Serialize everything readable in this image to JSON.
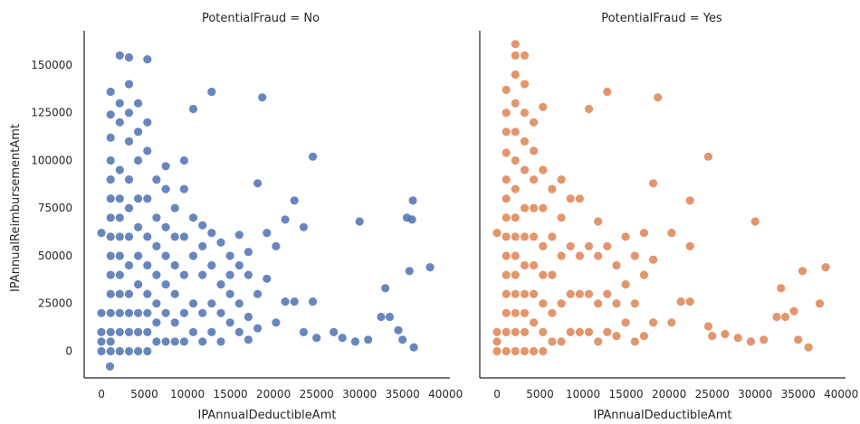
{
  "chart_data": {
    "type": "scatter",
    "facet_variable": "PotentialFraud",
    "xlabel": "IPAnnualDeductibleAmt",
    "ylabel": "IPAnnualReimbursementAmt",
    "xlim": [
      -2000,
      40500
    ],
    "ylim": [
      -14000,
      168000
    ],
    "xticks": [
      0,
      5000,
      10000,
      15000,
      20000,
      25000,
      30000,
      35000,
      40000
    ],
    "yticks": [
      0,
      25000,
      50000,
      75000,
      100000,
      125000,
      150000
    ],
    "grid": false,
    "legend": "none",
    "panels": [
      {
        "title": "PotentialFraud = No",
        "color": "#4c72b0",
        "points": [
          [
            0,
            0
          ],
          [
            0,
            5000
          ],
          [
            0,
            10000
          ],
          [
            0,
            20000
          ],
          [
            0,
            62000
          ],
          [
            1000,
            -8000
          ],
          [
            1068,
            0
          ],
          [
            1068,
            5000
          ],
          [
            1068,
            10000
          ],
          [
            1068,
            20000
          ],
          [
            1068,
            30000
          ],
          [
            1068,
            40000
          ],
          [
            1068,
            50000
          ],
          [
            1068,
            60000
          ],
          [
            1068,
            70000
          ],
          [
            1068,
            80000
          ],
          [
            1068,
            90000
          ],
          [
            1068,
            100000
          ],
          [
            1068,
            112000
          ],
          [
            1068,
            124000
          ],
          [
            1068,
            136000
          ],
          [
            2136,
            0
          ],
          [
            2136,
            10000
          ],
          [
            2136,
            20000
          ],
          [
            2136,
            30000
          ],
          [
            2136,
            40000
          ],
          [
            2136,
            50000
          ],
          [
            2136,
            60000
          ],
          [
            2136,
            70000
          ],
          [
            2136,
            80000
          ],
          [
            2136,
            95000
          ],
          [
            2136,
            120000
          ],
          [
            2136,
            130000
          ],
          [
            2136,
            155000
          ],
          [
            3204,
            0
          ],
          [
            3204,
            10000
          ],
          [
            3204,
            20000
          ],
          [
            3204,
            30000
          ],
          [
            3204,
            45000
          ],
          [
            3204,
            60000
          ],
          [
            3204,
            75000
          ],
          [
            3204,
            90000
          ],
          [
            3204,
            110000
          ],
          [
            3204,
            125000
          ],
          [
            3204,
            140000
          ],
          [
            3204,
            154000
          ],
          [
            4272,
            0
          ],
          [
            4272,
            10000
          ],
          [
            4272,
            20000
          ],
          [
            4272,
            35000
          ],
          [
            4272,
            50000
          ],
          [
            4272,
            65000
          ],
          [
            4272,
            80000
          ],
          [
            4272,
            100000
          ],
          [
            4272,
            115000
          ],
          [
            4272,
            130000
          ],
          [
            5340,
            0
          ],
          [
            5340,
            10000
          ],
          [
            5340,
            20000
          ],
          [
            5340,
            30000
          ],
          [
            5340,
            45000
          ],
          [
            5340,
            60000
          ],
          [
            5340,
            80000
          ],
          [
            5340,
            105000
          ],
          [
            5340,
            120000
          ],
          [
            5340,
            153000
          ],
          [
            6408,
            5000
          ],
          [
            6408,
            15000
          ],
          [
            6408,
            25000
          ],
          [
            6408,
            40000
          ],
          [
            6408,
            55000
          ],
          [
            6408,
            70000
          ],
          [
            6408,
            90000
          ],
          [
            7476,
            5000
          ],
          [
            7476,
            20000
          ],
          [
            7476,
            35000
          ],
          [
            7476,
            50000
          ],
          [
            7476,
            65000
          ],
          [
            7476,
            85000
          ],
          [
            7476,
            97000
          ],
          [
            8544,
            5000
          ],
          [
            8544,
            15000
          ],
          [
            8544,
            30000
          ],
          [
            8544,
            45000
          ],
          [
            8544,
            60000
          ],
          [
            8544,
            75000
          ],
          [
            9612,
            5000
          ],
          [
            9612,
            20000
          ],
          [
            9612,
            40000
          ],
          [
            9612,
            60000
          ],
          [
            9612,
            100000
          ],
          [
            9612,
            85000
          ],
          [
            10680,
            10000
          ],
          [
            10680,
            25000
          ],
          [
            10680,
            50000
          ],
          [
            10680,
            70000
          ],
          [
            10680,
            127000
          ],
          [
            11748,
            5000
          ],
          [
            11748,
            20000
          ],
          [
            11748,
            40000
          ],
          [
            11748,
            55000
          ],
          [
            11748,
            66000
          ],
          [
            12816,
            10000
          ],
          [
            12816,
            25000
          ],
          [
            12816,
            45000
          ],
          [
            12816,
            62000
          ],
          [
            12816,
            136000
          ],
          [
            13884,
            5000
          ],
          [
            13884,
            20000
          ],
          [
            13884,
            35000
          ],
          [
            13884,
            57000
          ],
          [
            14952,
            15000
          ],
          [
            14952,
            30000
          ],
          [
            14952,
            50000
          ],
          [
            14952,
            40000
          ],
          [
            16020,
            10000
          ],
          [
            16020,
            25000
          ],
          [
            16020,
            45000
          ],
          [
            16020,
            61000
          ],
          [
            17088,
            6000
          ],
          [
            17088,
            18000
          ],
          [
            17088,
            40000
          ],
          [
            17088,
            52000
          ],
          [
            18156,
            12000
          ],
          [
            18156,
            30000
          ],
          [
            18156,
            88000
          ],
          [
            18690,
            133000
          ],
          [
            19224,
            62000
          ],
          [
            19224,
            38000
          ],
          [
            20292,
            15000
          ],
          [
            20292,
            55000
          ],
          [
            21360,
            26000
          ],
          [
            21360,
            69000
          ],
          [
            22428,
            26000
          ],
          [
            22428,
            79000
          ],
          [
            23496,
            10000
          ],
          [
            23496,
            65000
          ],
          [
            24564,
            26000
          ],
          [
            24564,
            102000
          ],
          [
            25000,
            7000
          ],
          [
            27000,
            10000
          ],
          [
            28000,
            7000
          ],
          [
            30000,
            68000
          ],
          [
            29500,
            5000
          ],
          [
            31000,
            6000
          ],
          [
            32500,
            18000
          ],
          [
            33000,
            33000
          ],
          [
            33500,
            18000
          ],
          [
            34500,
            11000
          ],
          [
            35000,
            6000
          ],
          [
            35500,
            70000
          ],
          [
            35800,
            42000
          ],
          [
            36200,
            79000
          ],
          [
            36300,
            2000
          ],
          [
            36100,
            69000
          ],
          [
            38200,
            44000
          ]
        ]
      },
      {
        "title": "PotentialFraud = Yes",
        "color": "#dd8452",
        "points": [
          [
            0,
            0
          ],
          [
            0,
            5000
          ],
          [
            0,
            10000
          ],
          [
            0,
            62000
          ],
          [
            1068,
            0
          ],
          [
            1068,
            10000
          ],
          [
            1068,
            20000
          ],
          [
            1068,
            30000
          ],
          [
            1068,
            40000
          ],
          [
            1068,
            50000
          ],
          [
            1068,
            60000
          ],
          [
            1068,
            70000
          ],
          [
            1068,
            80000
          ],
          [
            1068,
            90000
          ],
          [
            1068,
            104000
          ],
          [
            1068,
            115000
          ],
          [
            1068,
            125000
          ],
          [
            1068,
            137000
          ],
          [
            2136,
            0
          ],
          [
            2136,
            10000
          ],
          [
            2136,
            20000
          ],
          [
            2136,
            30000
          ],
          [
            2136,
            40000
          ],
          [
            2136,
            50000
          ],
          [
            2136,
            60000
          ],
          [
            2136,
            70000
          ],
          [
            2136,
            85000
          ],
          [
            2136,
            100000
          ],
          [
            2136,
            115000
          ],
          [
            2136,
            130000
          ],
          [
            2136,
            145000
          ],
          [
            2136,
            155000
          ],
          [
            2136,
            161000
          ],
          [
            3204,
            0
          ],
          [
            3204,
            10000
          ],
          [
            3204,
            20000
          ],
          [
            3204,
            30000
          ],
          [
            3204,
            45000
          ],
          [
            3204,
            60000
          ],
          [
            3204,
            75000
          ],
          [
            3204,
            95000
          ],
          [
            3204,
            110000
          ],
          [
            3204,
            125000
          ],
          [
            3204,
            140000
          ],
          [
            3204,
            155000
          ],
          [
            4272,
            0
          ],
          [
            4272,
            15000
          ],
          [
            4272,
            30000
          ],
          [
            4272,
            45000
          ],
          [
            4272,
            60000
          ],
          [
            4272,
            75000
          ],
          [
            4272,
            90000
          ],
          [
            4272,
            105000
          ],
          [
            4272,
            120000
          ],
          [
            5340,
            0
          ],
          [
            5340,
            10000
          ],
          [
            5340,
            25000
          ],
          [
            5340,
            40000
          ],
          [
            5340,
            55000
          ],
          [
            5340,
            75000
          ],
          [
            5340,
            95000
          ],
          [
            5340,
            128000
          ],
          [
            6408,
            5000
          ],
          [
            6408,
            20000
          ],
          [
            6408,
            40000
          ],
          [
            6408,
            60000
          ],
          [
            6408,
            85000
          ],
          [
            7476,
            5000
          ],
          [
            7476,
            25000
          ],
          [
            7476,
            50000
          ],
          [
            7476,
            70000
          ],
          [
            7476,
            90000
          ],
          [
            8544,
            10000
          ],
          [
            8544,
            30000
          ],
          [
            8544,
            55000
          ],
          [
            8544,
            80000
          ],
          [
            9612,
            10000
          ],
          [
            9612,
            30000
          ],
          [
            9612,
            50000
          ],
          [
            9612,
            80000
          ],
          [
            10680,
            10000
          ],
          [
            10680,
            30000
          ],
          [
            10680,
            55000
          ],
          [
            10680,
            127000
          ],
          [
            11748,
            5000
          ],
          [
            11748,
            25000
          ],
          [
            11748,
            50000
          ],
          [
            11748,
            68000
          ],
          [
            12816,
            10000
          ],
          [
            12816,
            30000
          ],
          [
            12816,
            55000
          ],
          [
            12816,
            136000
          ],
          [
            13884,
            8000
          ],
          [
            13884,
            25000
          ],
          [
            13884,
            45000
          ],
          [
            14952,
            15000
          ],
          [
            14952,
            35000
          ],
          [
            14952,
            60000
          ],
          [
            16020,
            5000
          ],
          [
            16020,
            25000
          ],
          [
            16020,
            50000
          ],
          [
            17088,
            8000
          ],
          [
            17088,
            40000
          ],
          [
            17088,
            62000
          ],
          [
            18156,
            15000
          ],
          [
            18156,
            48000
          ],
          [
            18156,
            88000
          ],
          [
            18690,
            133000
          ],
          [
            20292,
            15000
          ],
          [
            20292,
            62000
          ],
          [
            21360,
            26000
          ],
          [
            22428,
            26000
          ],
          [
            22428,
            79000
          ],
          [
            22428,
            55000
          ],
          [
            24564,
            13000
          ],
          [
            24564,
            102000
          ],
          [
            25000,
            8000
          ],
          [
            26500,
            9000
          ],
          [
            28000,
            7000
          ],
          [
            29500,
            5000
          ],
          [
            30000,
            68000
          ],
          [
            31000,
            6000
          ],
          [
            32500,
            18000
          ],
          [
            33000,
            33000
          ],
          [
            33500,
            18000
          ],
          [
            34500,
            21000
          ],
          [
            35000,
            6000
          ],
          [
            35500,
            42000
          ],
          [
            36200,
            2000
          ],
          [
            37500,
            25000
          ],
          [
            38200,
            44000
          ]
        ]
      }
    ]
  }
}
